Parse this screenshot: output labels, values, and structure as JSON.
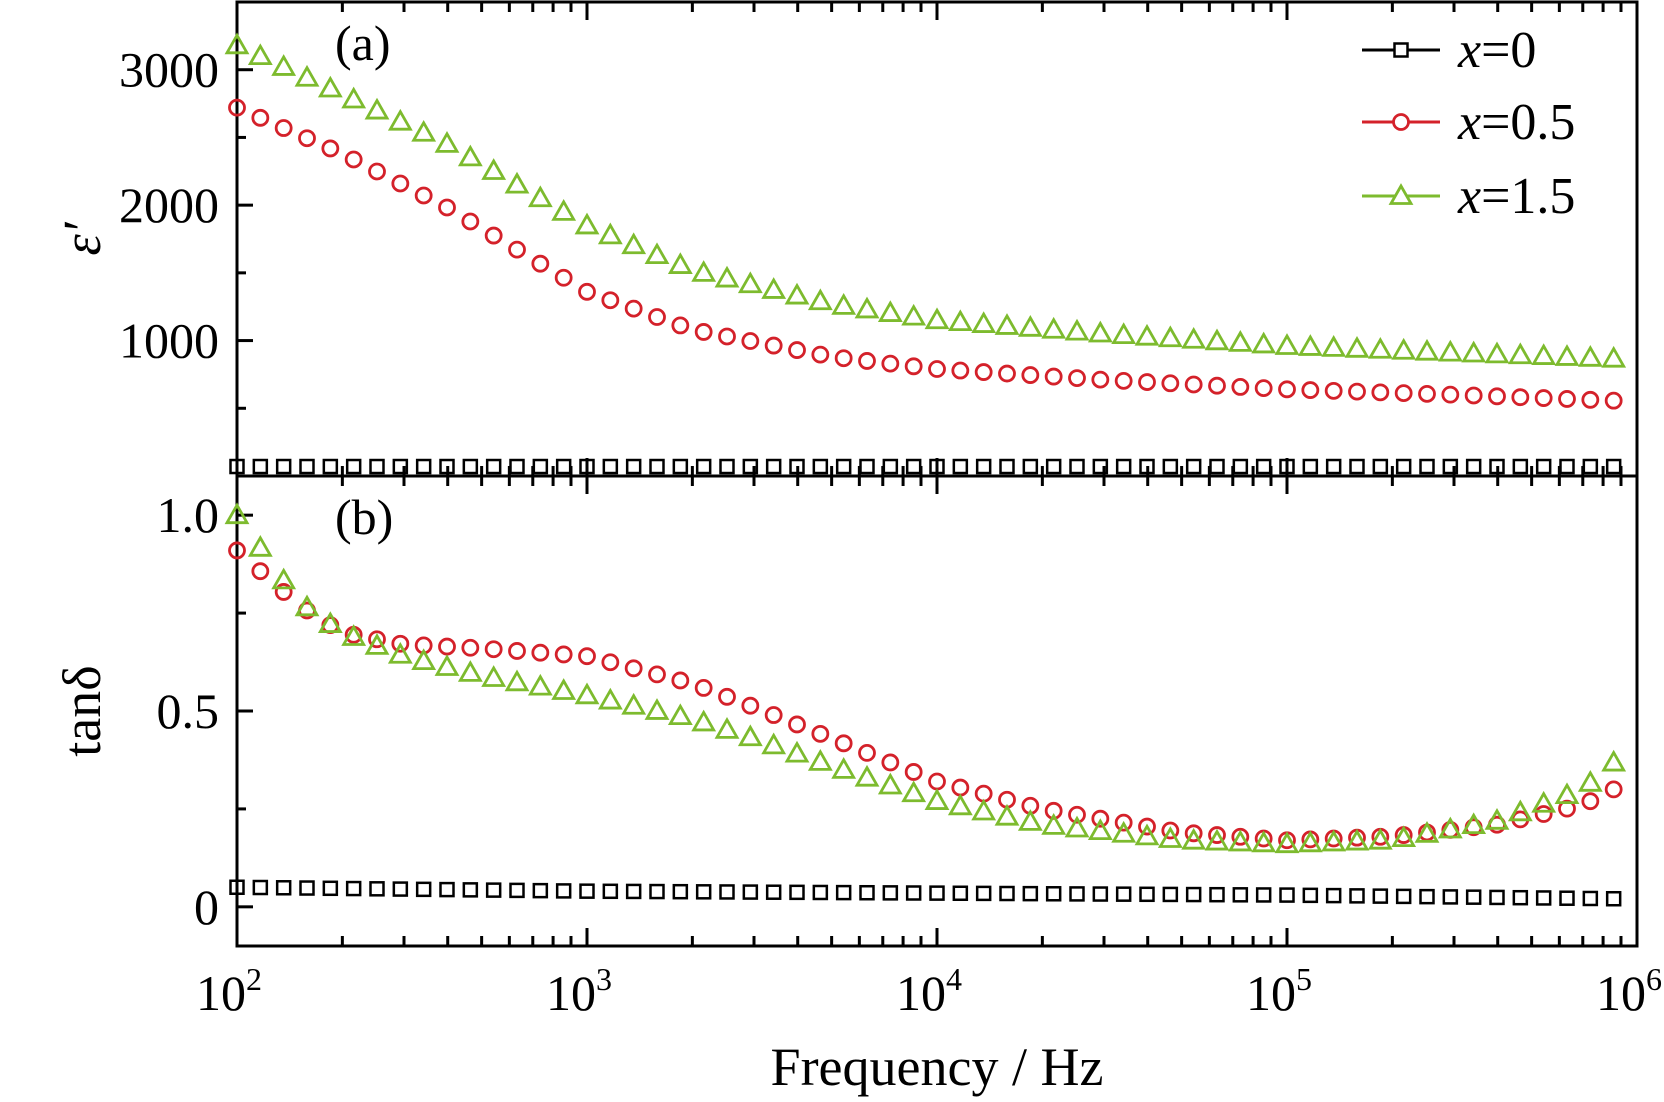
{
  "chart_data": [
    {
      "type": "scatter",
      "panel_label": "(a)",
      "ylabel": "ε′",
      "xscale": "log",
      "xlim": [
        100,
        1000000
      ],
      "ylim": [
        0,
        3500
      ],
      "yticks": [
        1000,
        2000,
        3000
      ],
      "ytick_labels": [
        "1000",
        "2000",
        "3000"
      ],
      "legend_position": "top-right",
      "series": [
        {
          "name": "x=0",
          "label_var": "x",
          "label_val": "=0",
          "marker": "square",
          "color": "#000000",
          "key_x": [
            100,
            1000,
            10000,
            100000,
            1000000
          ],
          "key_y": [
            70,
            70,
            70,
            70,
            70
          ]
        },
        {
          "name": "x=0.5",
          "label_var": "x",
          "label_val": "=0.5",
          "marker": "circle",
          "color": "#d4212a",
          "key_x": [
            100,
            200,
            400,
            1000,
            2000,
            5000,
            10000,
            30000,
            100000,
            300000,
            1000000
          ],
          "key_y": [
            2720,
            2380,
            1980,
            1360,
            1080,
            880,
            790,
            710,
            640,
            600,
            550
          ]
        },
        {
          "name": "x=1.5",
          "label_var": "x",
          "label_val": "=1.5",
          "marker": "triangle",
          "color": "#7dbb2e",
          "key_x": [
            100,
            200,
            400,
            1000,
            2000,
            5000,
            10000,
            30000,
            100000,
            300000,
            1000000
          ],
          "key_y": [
            3180,
            2820,
            2450,
            1850,
            1520,
            1270,
            1150,
            1050,
            960,
            910,
            860
          ]
        }
      ]
    },
    {
      "type": "scatter",
      "panel_label": "(b)",
      "ylabel": "tanδ",
      "xlabel": "Frequency / Hz",
      "xscale": "log",
      "xlim": [
        100,
        1000000
      ],
      "ylim": [
        -0.1,
        1.1
      ],
      "yticks": [
        0,
        0.5,
        1.0
      ],
      "ytick_labels": [
        "0",
        "0.5",
        "1.0"
      ],
      "xtick_base": "10",
      "xtick_exponents": [
        "2",
        "3",
        "4",
        "5",
        "6"
      ],
      "series": [
        {
          "name": "x=0",
          "marker": "square",
          "color": "#000000",
          "key_x": [
            100,
            1000,
            10000,
            100000,
            1000000
          ],
          "key_y": [
            0.05,
            0.04,
            0.035,
            0.03,
            0.02
          ]
        },
        {
          "name": "x=0.5",
          "marker": "circle",
          "color": "#d4212a",
          "key_x": [
            100,
            150,
            200,
            300,
            500,
            1000,
            2000,
            3000,
            5000,
            10000,
            20000,
            50000,
            100000,
            200000,
            400000,
            700000,
            1000000
          ],
          "key_y": [
            0.91,
            0.77,
            0.7,
            0.67,
            0.66,
            0.64,
            0.57,
            0.51,
            0.43,
            0.32,
            0.25,
            0.19,
            0.17,
            0.18,
            0.21,
            0.26,
            0.33
          ]
        },
        {
          "name": "x=1.5",
          "marker": "triangle",
          "color": "#7dbb2e",
          "key_x": [
            100,
            150,
            200,
            300,
            500,
            1000,
            2000,
            3000,
            5000,
            10000,
            20000,
            50000,
            100000,
            200000,
            400000,
            700000,
            1000000
          ],
          "key_y": [
            1.0,
            0.78,
            0.7,
            0.64,
            0.59,
            0.54,
            0.48,
            0.43,
            0.36,
            0.27,
            0.21,
            0.17,
            0.16,
            0.17,
            0.22,
            0.3,
            0.42
          ]
        }
      ]
    }
  ]
}
